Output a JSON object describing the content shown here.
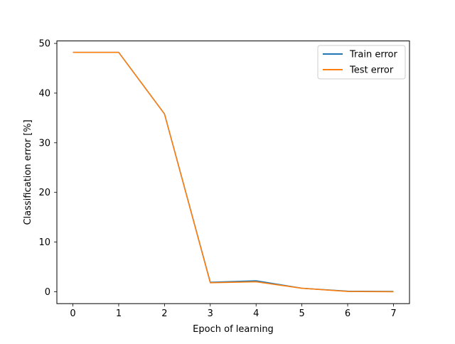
{
  "chart_data": {
    "type": "line",
    "title": "",
    "xlabel": "Epoch of learning",
    "ylabel": "Classification error [%]",
    "x": [
      0,
      1,
      2,
      3,
      4,
      5,
      6,
      7
    ],
    "xlim": [
      -0.35,
      7.35
    ],
    "ylim": [
      -2.4,
      50.5
    ],
    "xticks": [
      0,
      1,
      2,
      3,
      4,
      5,
      6,
      7
    ],
    "yticks": [
      0,
      10,
      20,
      30,
      40,
      50
    ],
    "grid": false,
    "legend_position": "upper right",
    "series": [
      {
        "name": "Train error",
        "color": "#1f77b4",
        "values": [
          48.2,
          48.2,
          35.8,
          1.9,
          2.2,
          0.7,
          0.1,
          0.05
        ]
      },
      {
        "name": "Test error",
        "color": "#ff7f0e",
        "values": [
          48.2,
          48.2,
          35.8,
          1.8,
          2.0,
          0.7,
          0.05,
          0.0
        ]
      }
    ]
  }
}
